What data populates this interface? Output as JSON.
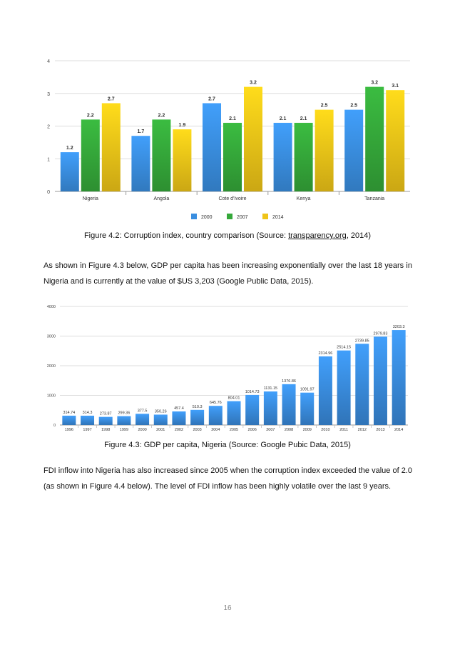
{
  "figure1": {
    "caption_prefix": "Figure 4.2: Corruption index, country comparison (Source: ",
    "caption_link": "transparency.org",
    "caption_suffix": ", 2014)"
  },
  "paragraph1": "As shown in Figure 4.3 below, GDP per capita has been increasing exponentially over the last 18 years in Nigeria and is currently at the value of $US 3,203 (Google Public Data, 2015).",
  "figure2": {
    "caption": "Figure 4.3: GDP per capita, Nigeria (Source: Google Pubic Data, 2015)"
  },
  "paragraph2": "FDI inflow into Nigeria has also increased since 2005 when the corruption index exceeded the value of 2.0 (as shown in Figure 4.4 below). The level of FDI inflow has been highly volatile over the last 9 years.",
  "page_number": "16",
  "chart_data": [
    {
      "type": "bar",
      "categories": [
        "Nigeria",
        "Angola",
        "Cote d'Ivoire",
        "Kenya",
        "Tanzania"
      ],
      "series": [
        {
          "name": "2000",
          "values": [
            1.2,
            1.7,
            2.7,
            2.1,
            2.5
          ],
          "color": "#3a8ee0"
        },
        {
          "name": "2007",
          "values": [
            2.2,
            2.2,
            2.1,
            2.1,
            3.2
          ],
          "color": "#35a83a"
        },
        {
          "name": "2014",
          "values": [
            2.7,
            1.9,
            3.2,
            2.5,
            3.1
          ],
          "color": "#efc418"
        }
      ],
      "value_labels": [
        [
          "1.2",
          "1.7",
          "2.7",
          "2.1",
          "2.5"
        ],
        [
          "2.2",
          "2.2",
          "2.1",
          "2.1",
          "3.2"
        ],
        [
          "2.7",
          "1.9",
          "3.2",
          "2.5",
          "3.1"
        ]
      ],
      "ylim": [
        0,
        4
      ],
      "yticks": [
        "0",
        "1",
        "2",
        "3",
        "4"
      ],
      "grid": true,
      "legend_position": "bottom-center"
    },
    {
      "type": "bar",
      "categories": [
        "1996",
        "1997",
        "1998",
        "1999",
        "2000",
        "2001",
        "2002",
        "2003",
        "2004",
        "2005",
        "2006",
        "2007",
        "2008",
        "2009",
        "2010",
        "2011",
        "2012",
        "2013",
        "2014"
      ],
      "values": [
        314.74,
        314.3,
        273.87,
        299.36,
        377.5,
        350.26,
        457.4,
        510.3,
        645.76,
        804.01,
        1014.73,
        1131.15,
        1376.86,
        1091.97,
        2314.96,
        2514.15,
        2739.85,
        2979.83,
        3203.3
      ],
      "value_labels": [
        "314.74",
        "314.3",
        "273.87",
        "299.36",
        "377.5",
        "350.26",
        "457.4",
        "510.3",
        "645.76",
        "804.01",
        "1014.73",
        "1131.15",
        "1376.86",
        "1091.97",
        "2314.96",
        "2514.15",
        "2739.85",
        "2979.83",
        "3203.3"
      ],
      "color": "#3a8ee0",
      "ylim": [
        0,
        4000
      ],
      "yticks": [
        "0",
        "1000",
        "2000",
        "3000",
        "4000"
      ],
      "grid": true
    }
  ]
}
